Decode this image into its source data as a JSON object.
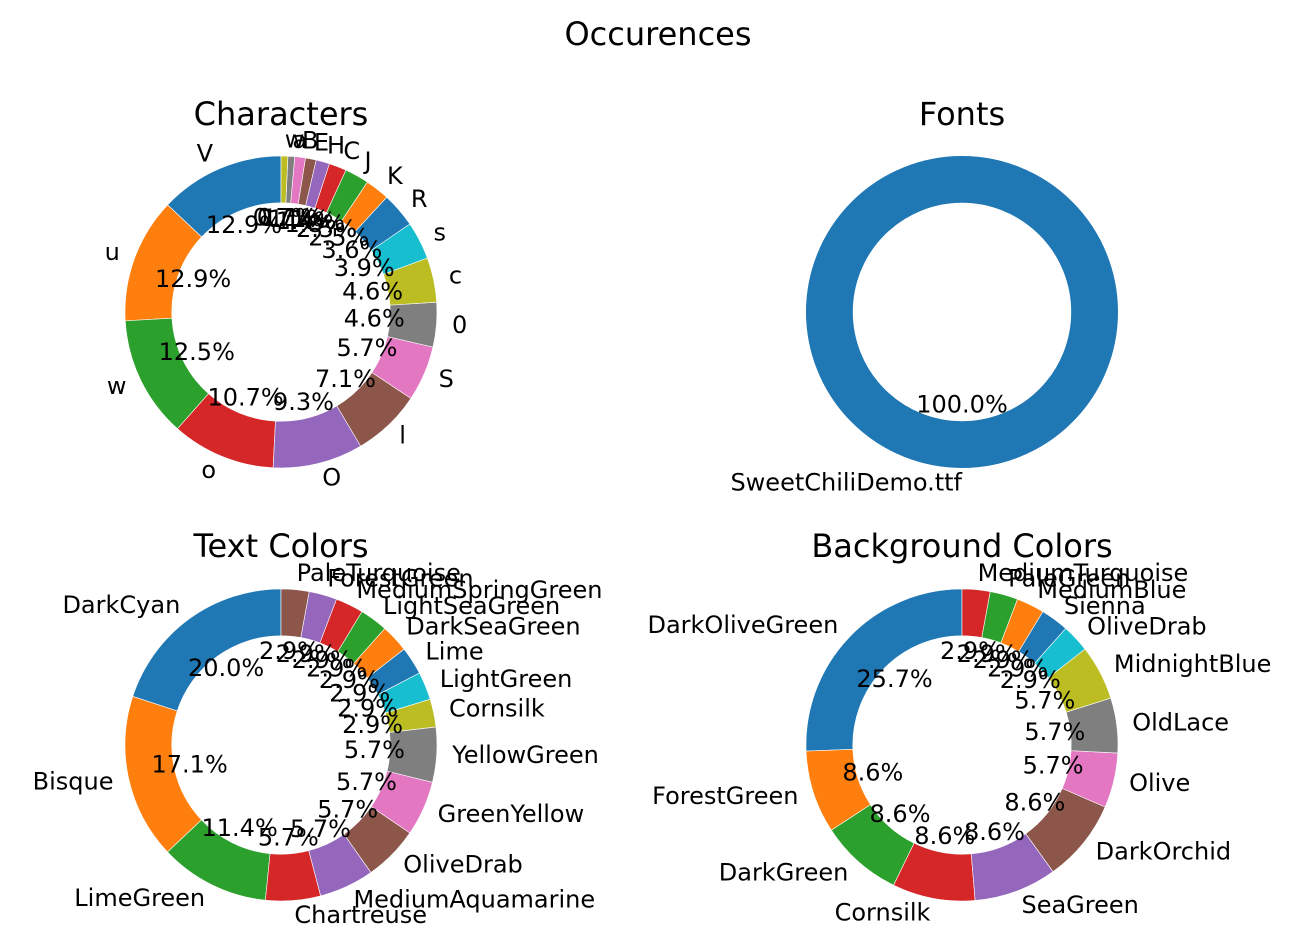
{
  "suptitle": "Occurences",
  "chart_data": [
    {
      "type": "pie",
      "title": "Characters",
      "donut": true,
      "labels": [
        "V",
        "u",
        "w",
        "o",
        "O",
        "l",
        "S",
        "0",
        "c",
        "s",
        "R",
        "K",
        "J",
        "C",
        "H",
        "E",
        "B",
        "a",
        "w"
      ],
      "values": [
        12.9,
        12.9,
        12.5,
        10.7,
        9.3,
        7.1,
        5.7,
        4.6,
        4.6,
        3.9,
        3.6,
        2.5,
        2.5,
        1.8,
        1.4,
        1.1,
        1.1,
        0.7,
        0.7
      ],
      "pct_labels": [
        "12.9%",
        "12.9%",
        "12.5%",
        "10.7%",
        "9.3%",
        "7.1%",
        "5.7%",
        "4.6%",
        "4.6%",
        "3.9%",
        "3.6%",
        "2.5%",
        "2.5%",
        "1.8%",
        "1.4%",
        "1.1%",
        "1.1%",
        "0.7%",
        "0.7%"
      ],
      "colors": [
        "#1f77b4",
        "#ff7f0e",
        "#2ca02c",
        "#d62728",
        "#9467bd",
        "#8c564b",
        "#e377c2",
        "#7f7f7f",
        "#bcbd22",
        "#17becf",
        "#1f77b4",
        "#ff7f0e",
        "#2ca02c",
        "#d62728",
        "#9467bd",
        "#8c564b",
        "#e377c2",
        "#7f7f7f",
        "#bcbd22"
      ]
    },
    {
      "type": "pie",
      "title": "Fonts",
      "donut": true,
      "labels": [
        "SweetChiliDemo.ttf"
      ],
      "values": [
        100.0
      ],
      "pct_labels": [
        "100.0%"
      ],
      "colors": [
        "#1f77b4"
      ]
    },
    {
      "type": "pie",
      "title": "Text Colors",
      "donut": true,
      "labels": [
        "DarkCyan",
        "Bisque",
        "LimeGreen",
        "Chartreuse",
        "MediumAquamarine",
        "OliveDrab",
        "GreenYellow",
        "YellowGreen",
        "Cornsilk",
        "LightGreen",
        "Lime",
        "DarkSeaGreen",
        "LightSeaGreen",
        "MediumSpringGreen",
        "ForestGreen",
        "PaleTurquoise"
      ],
      "values": [
        20.0,
        17.1,
        11.4,
        5.7,
        5.7,
        5.7,
        5.7,
        5.7,
        2.9,
        2.9,
        2.9,
        2.9,
        2.9,
        2.9,
        2.9,
        2.9
      ],
      "pct_labels": [
        "20.0%",
        "17.1%",
        "11.4%",
        "5.7%",
        "5.7%",
        "5.7%",
        "5.7%",
        "5.7%",
        "2.9%",
        "2.9%",
        "2.9%",
        "2.9%",
        "2.9%",
        "2.9%",
        "2.9%",
        "2.9%"
      ],
      "colors": [
        "#1f77b4",
        "#ff7f0e",
        "#2ca02c",
        "#d62728",
        "#9467bd",
        "#8c564b",
        "#e377c2",
        "#7f7f7f",
        "#bcbd22",
        "#17becf",
        "#1f77b4",
        "#ff7f0e",
        "#2ca02c",
        "#d62728",
        "#9467bd",
        "#8c564b"
      ]
    },
    {
      "type": "pie",
      "title": "Background Colors",
      "donut": true,
      "labels": [
        "DarkOliveGreen",
        "ForestGreen",
        "DarkGreen",
        "Cornsilk",
        "SeaGreen",
        "DarkOrchid",
        "Olive",
        "OldLace",
        "MidnightBlue",
        "OliveDrab",
        "Sienna",
        "MediumBlue",
        "PaleGreen",
        "MediumTurquoise"
      ],
      "values": [
        25.7,
        8.6,
        8.6,
        8.6,
        8.6,
        8.6,
        5.7,
        5.7,
        5.7,
        2.9,
        2.9,
        2.9,
        2.9,
        2.9
      ],
      "pct_labels": [
        "25.7%",
        "8.6%",
        "8.6%",
        "8.6%",
        "8.6%",
        "8.6%",
        "5.7%",
        "5.7%",
        "5.7%",
        "2.9%",
        "2.9%",
        "2.9%",
        "2.9%",
        "2.9%"
      ],
      "colors": [
        "#1f77b4",
        "#ff7f0e",
        "#2ca02c",
        "#d62728",
        "#9467bd",
        "#8c564b",
        "#e377c2",
        "#7f7f7f",
        "#bcbd22",
        "#17becf",
        "#1f77b4",
        "#ff7f0e",
        "#2ca02c",
        "#d62728"
      ]
    }
  ]
}
